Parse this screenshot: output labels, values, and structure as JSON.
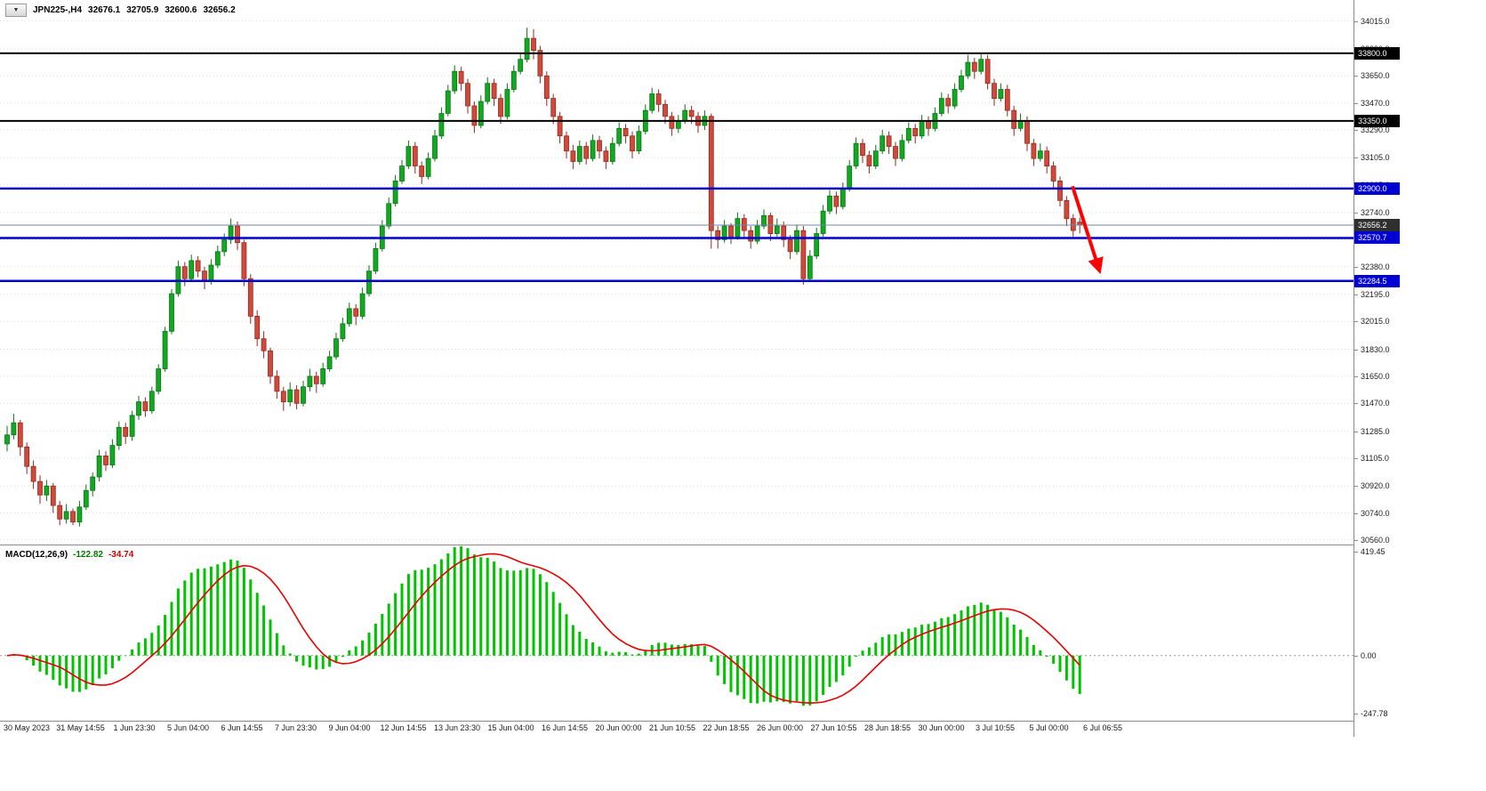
{
  "header": {
    "symbol_period": "JPN225-,H4",
    "open": "32676.1",
    "high": "32705.9",
    "low": "32600.6",
    "close": "32656.2"
  },
  "indicator": {
    "name": "MACD(12,26,9)",
    "main_value": "-122.82",
    "signal_value": "-34.74"
  },
  "icons": {
    "symbol_dropdown": "chevron-down"
  },
  "axis": {
    "price_ticks": [
      "34015.0",
      "33830.0",
      "33650.0",
      "33470.0",
      "33290.0",
      "33105.0",
      "32925.0",
      "32740.0",
      "32560.0",
      "32380.0",
      "32195.0",
      "32015.0",
      "31830.0",
      "31650.0",
      "31470.0",
      "31285.0",
      "31105.0",
      "30920.0",
      "30740.0",
      "30560.0"
    ],
    "macd_ticks": [
      "419.45",
      "0.00",
      "-247.78"
    ],
    "time_labels": [
      "30 May 2023",
      "31 May 14:55",
      "1 Jun 23:30",
      "5 Jun 04:00",
      "6 Jun 14:55",
      "7 Jun 23:30",
      "9 Jun 04:00",
      "12 Jun 14:55",
      "13 Jun 23:30",
      "15 Jun 04:00",
      "16 Jun 14:55",
      "20 Jun 00:00",
      "21 Jun 10:55",
      "22 Jun 18:55",
      "26 Jun 00:00",
      "27 Jun 10:55",
      "28 Jun 18:55",
      "30 Jun 00:00",
      "3 Jul 10:55",
      "5 Jul 00:00",
      "6 Jul 06:55"
    ]
  },
  "chart_data": [
    {
      "type": "candlestick",
      "title": "JPN225-,H4",
      "symbol": "JPN225-",
      "timeframe": "H4",
      "ylim": [
        30530,
        34155
      ],
      "grid": true,
      "colors": {
        "up": "#12a822",
        "up_border": "#077512",
        "down": "#d04a3c",
        "down_border": "#94281e",
        "background": "#ffffff",
        "grid": "#d8d8d8"
      },
      "levels": [
        {
          "price": 33800.0,
          "label": "33800.0",
          "color": "#000000",
          "width": 2
        },
        {
          "price": 33350.0,
          "label": "33350.0",
          "color": "#000000",
          "width": 2
        },
        {
          "price": 32900.0,
          "label": "32900.0",
          "color": "#0000d2",
          "width": 2.5
        },
        {
          "price": 32570.7,
          "label": "32570.7",
          "color": "#0000d2",
          "width": 2.5
        },
        {
          "price": 32284.5,
          "label": "32284.5",
          "color": "#0000d2",
          "width": 2.5
        }
      ],
      "current_price": {
        "value": 32656.2,
        "label": "32656.2",
        "line_color": "#7086a0",
        "badge_color": "#2f2f2f"
      },
      "annotation": {
        "type": "arrow",
        "color": "#ff0000",
        "from": {
          "x": 1206,
          "price": 32915
        },
        "to": {
          "x": 1236,
          "price": 32360
        }
      },
      "candles": [
        [
          31200,
          31320,
          31150,
          31260
        ],
        [
          31260,
          31400,
          31230,
          31340
        ],
        [
          31340,
          31360,
          31120,
          31180
        ],
        [
          31180,
          31210,
          31000,
          31050
        ],
        [
          31050,
          31090,
          30900,
          30950
        ],
        [
          30950,
          30990,
          30800,
          30860
        ],
        [
          30860,
          30960,
          30820,
          30920
        ],
        [
          30920,
          30940,
          30740,
          30790
        ],
        [
          30790,
          30820,
          30660,
          30700
        ],
        [
          30700,
          30800,
          30670,
          30750
        ],
        [
          30750,
          30770,
          30660,
          30680
        ],
        [
          30680,
          30820,
          30650,
          30780
        ],
        [
          30780,
          30930,
          30760,
          30890
        ],
        [
          30890,
          31010,
          30850,
          30980
        ],
        [
          30980,
          31160,
          30950,
          31120
        ],
        [
          31120,
          31150,
          31020,
          31060
        ],
        [
          31060,
          31230,
          31040,
          31190
        ],
        [
          31190,
          31350,
          31160,
          31310
        ],
        [
          31310,
          31340,
          31200,
          31250
        ],
        [
          31250,
          31420,
          31220,
          31390
        ],
        [
          31390,
          31520,
          31360,
          31480
        ],
        [
          31480,
          31510,
          31380,
          31420
        ],
        [
          31420,
          31580,
          31400,
          31550
        ],
        [
          31550,
          31730,
          31530,
          31700
        ],
        [
          31700,
          31980,
          31680,
          31950
        ],
        [
          31950,
          32230,
          31930,
          32200
        ],
        [
          32200,
          32420,
          32180,
          32380
        ],
        [
          32380,
          32410,
          32250,
          32300
        ],
        [
          32300,
          32460,
          32280,
          32420
        ],
        [
          32420,
          32450,
          32310,
          32350
        ],
        [
          32350,
          32380,
          32230,
          32280
        ],
        [
          32280,
          32430,
          32260,
          32390
        ],
        [
          32390,
          32520,
          32370,
          32480
        ],
        [
          32480,
          32600,
          32450,
          32560
        ],
        [
          32560,
          32700,
          32530,
          32650
        ],
        [
          32650,
          32680,
          32490,
          32540
        ],
        [
          32540,
          32560,
          32250,
          32300
        ],
        [
          32300,
          32330,
          32000,
          32050
        ],
        [
          32050,
          32090,
          31850,
          31900
        ],
        [
          31900,
          31950,
          31770,
          31820
        ],
        [
          31820,
          31840,
          31600,
          31650
        ],
        [
          31650,
          31690,
          31500,
          31550
        ],
        [
          31550,
          31580,
          31420,
          31480
        ],
        [
          31480,
          31610,
          31450,
          31560
        ],
        [
          31560,
          31590,
          31430,
          31470
        ],
        [
          31470,
          31620,
          31450,
          31580
        ],
        [
          31580,
          31700,
          31550,
          31650
        ],
        [
          31650,
          31680,
          31540,
          31600
        ],
        [
          31600,
          31740,
          31580,
          31700
        ],
        [
          31700,
          31820,
          31680,
          31780
        ],
        [
          31780,
          31940,
          31760,
          31900
        ],
        [
          31900,
          32040,
          31880,
          32000
        ],
        [
          32000,
          32140,
          31980,
          32100
        ],
        [
          32100,
          32130,
          31990,
          32050
        ],
        [
          32050,
          32240,
          32030,
          32200
        ],
        [
          32200,
          32390,
          32180,
          32350
        ],
        [
          32350,
          32540,
          32330,
          32500
        ],
        [
          32500,
          32690,
          32480,
          32650
        ],
        [
          32650,
          32840,
          32630,
          32800
        ],
        [
          32800,
          32990,
          32780,
          32950
        ],
        [
          32950,
          33090,
          32930,
          33050
        ],
        [
          33050,
          33220,
          33030,
          33180
        ],
        [
          33180,
          33210,
          33000,
          33050
        ],
        [
          33050,
          33080,
          32930,
          32980
        ],
        [
          32980,
          33140,
          32960,
          33100
        ],
        [
          33100,
          33290,
          33080,
          33250
        ],
        [
          33250,
          33440,
          33230,
          33400
        ],
        [
          33400,
          33590,
          33380,
          33550
        ],
        [
          33550,
          33720,
          33530,
          33680
        ],
        [
          33680,
          33710,
          33550,
          33600
        ],
        [
          33600,
          33630,
          33400,
          33450
        ],
        [
          33450,
          33480,
          33270,
          33320
        ],
        [
          33320,
          33520,
          33300,
          33480
        ],
        [
          33480,
          33640,
          33460,
          33600
        ],
        [
          33600,
          33630,
          33450,
          33500
        ],
        [
          33500,
          33530,
          33330,
          33380
        ],
        [
          33380,
          33600,
          33360,
          33560
        ],
        [
          33560,
          33720,
          33540,
          33680
        ],
        [
          33680,
          33800,
          33660,
          33760
        ],
        [
          33760,
          33970,
          33740,
          33900
        ],
        [
          33900,
          33960,
          33760,
          33820
        ],
        [
          33820,
          33850,
          33600,
          33650
        ],
        [
          33650,
          33680,
          33450,
          33500
        ],
        [
          33500,
          33530,
          33330,
          33380
        ],
        [
          33380,
          33410,
          33200,
          33250
        ],
        [
          33250,
          33280,
          33100,
          33150
        ],
        [
          33150,
          33190,
          33030,
          33080
        ],
        [
          33080,
          33220,
          33060,
          33180
        ],
        [
          33180,
          33210,
          33060,
          33100
        ],
        [
          33100,
          33260,
          33080,
          33220
        ],
        [
          33220,
          33250,
          33100,
          33150
        ],
        [
          33150,
          33180,
          33030,
          33080
        ],
        [
          33080,
          33240,
          33060,
          33200
        ],
        [
          33200,
          33340,
          33180,
          33300
        ],
        [
          33300,
          33330,
          33200,
          33250
        ],
        [
          33250,
          33280,
          33100,
          33150
        ],
        [
          33150,
          33320,
          33130,
          33280
        ],
        [
          33280,
          33460,
          33260,
          33420
        ],
        [
          33420,
          33570,
          33400,
          33530
        ],
        [
          33530,
          33560,
          33410,
          33460
        ],
        [
          33460,
          33490,
          33330,
          33380
        ],
        [
          33380,
          33410,
          33250,
          33300
        ],
        [
          33300,
          33390,
          33270,
          33350
        ],
        [
          33350,
          33460,
          33330,
          33420
        ],
        [
          33420,
          33450,
          33330,
          33380
        ],
        [
          33380,
          33410,
          33270,
          33320
        ],
        [
          33320,
          33420,
          33290,
          33380
        ],
        [
          33380,
          33400,
          32500,
          32620
        ],
        [
          32620,
          32650,
          32500,
          32560
        ],
        [
          32560,
          32690,
          32540,
          32650
        ],
        [
          32650,
          32670,
          32530,
          32580
        ],
        [
          32580,
          32740,
          32560,
          32700
        ],
        [
          32700,
          32730,
          32570,
          32620
        ],
        [
          32620,
          32650,
          32500,
          32550
        ],
        [
          32550,
          32690,
          32530,
          32650
        ],
        [
          32650,
          32760,
          32630,
          32720
        ],
        [
          32720,
          32740,
          32550,
          32600
        ],
        [
          32600,
          32700,
          32580,
          32650
        ],
        [
          32650,
          32680,
          32510,
          32560
        ],
        [
          32560,
          32590,
          32430,
          32480
        ],
        [
          32480,
          32660,
          32460,
          32620
        ],
        [
          32620,
          32650,
          32260,
          32300
        ],
        [
          32300,
          32490,
          32280,
          32450
        ],
        [
          32450,
          32640,
          32430,
          32600
        ],
        [
          32600,
          32790,
          32580,
          32750
        ],
        [
          32750,
          32890,
          32730,
          32850
        ],
        [
          32850,
          32880,
          32730,
          32780
        ],
        [
          32780,
          32940,
          32760,
          32900
        ],
        [
          32900,
          33090,
          32880,
          33050
        ],
        [
          33050,
          33240,
          33030,
          33200
        ],
        [
          33200,
          33230,
          33070,
          33120
        ],
        [
          33120,
          33150,
          33000,
          33050
        ],
        [
          33050,
          33190,
          33030,
          33150
        ],
        [
          33150,
          33290,
          33130,
          33250
        ],
        [
          33250,
          33280,
          33130,
          33180
        ],
        [
          33180,
          33210,
          33050,
          33100
        ],
        [
          33100,
          33260,
          33080,
          33220
        ],
        [
          33220,
          33340,
          33200,
          33300
        ],
        [
          33300,
          33330,
          33200,
          33250
        ],
        [
          33250,
          33390,
          33230,
          33350
        ],
        [
          33350,
          33380,
          33250,
          33300
        ],
        [
          33300,
          33440,
          33280,
          33400
        ],
        [
          33400,
          33540,
          33380,
          33500
        ],
        [
          33500,
          33530,
          33400,
          33450
        ],
        [
          33450,
          33600,
          33430,
          33560
        ],
        [
          33560,
          33690,
          33540,
          33650
        ],
        [
          33650,
          33790,
          33630,
          33740
        ],
        [
          33740,
          33770,
          33630,
          33680
        ],
        [
          33680,
          33800,
          33660,
          33760
        ],
        [
          33760,
          33790,
          33560,
          33600
        ],
        [
          33600,
          33630,
          33450,
          33500
        ],
        [
          33500,
          33600,
          33480,
          33560
        ],
        [
          33560,
          33590,
          33380,
          33420
        ],
        [
          33420,
          33450,
          33250,
          33300
        ],
        [
          33300,
          33400,
          33280,
          33350
        ],
        [
          33350,
          33380,
          33150,
          33200
        ],
        [
          33200,
          33230,
          33050,
          33100
        ],
        [
          33100,
          33200,
          33080,
          33150
        ],
        [
          33150,
          33180,
          33000,
          33050
        ],
        [
          33050,
          33080,
          32900,
          32950
        ],
        [
          32950,
          32980,
          32780,
          32820
        ],
        [
          32820,
          32850,
          32650,
          32700
        ],
        [
          32700,
          32730,
          32580,
          32620
        ],
        [
          32676.1,
          32705.9,
          32600.6,
          32656.2
        ]
      ]
    },
    {
      "type": "macd",
      "label": "MACD(12,26,9)",
      "params": {
        "fast": 12,
        "slow": 26,
        "signal": 9
      },
      "derived_from": "candles close series of chart 0",
      "ylim": [
        -250,
        419.45
      ],
      "main_value": -122.82,
      "signal_value": -34.74,
      "histogram_color": "#00c400",
      "signal_color": "#e60000",
      "zero_line": 0.0
    }
  ]
}
